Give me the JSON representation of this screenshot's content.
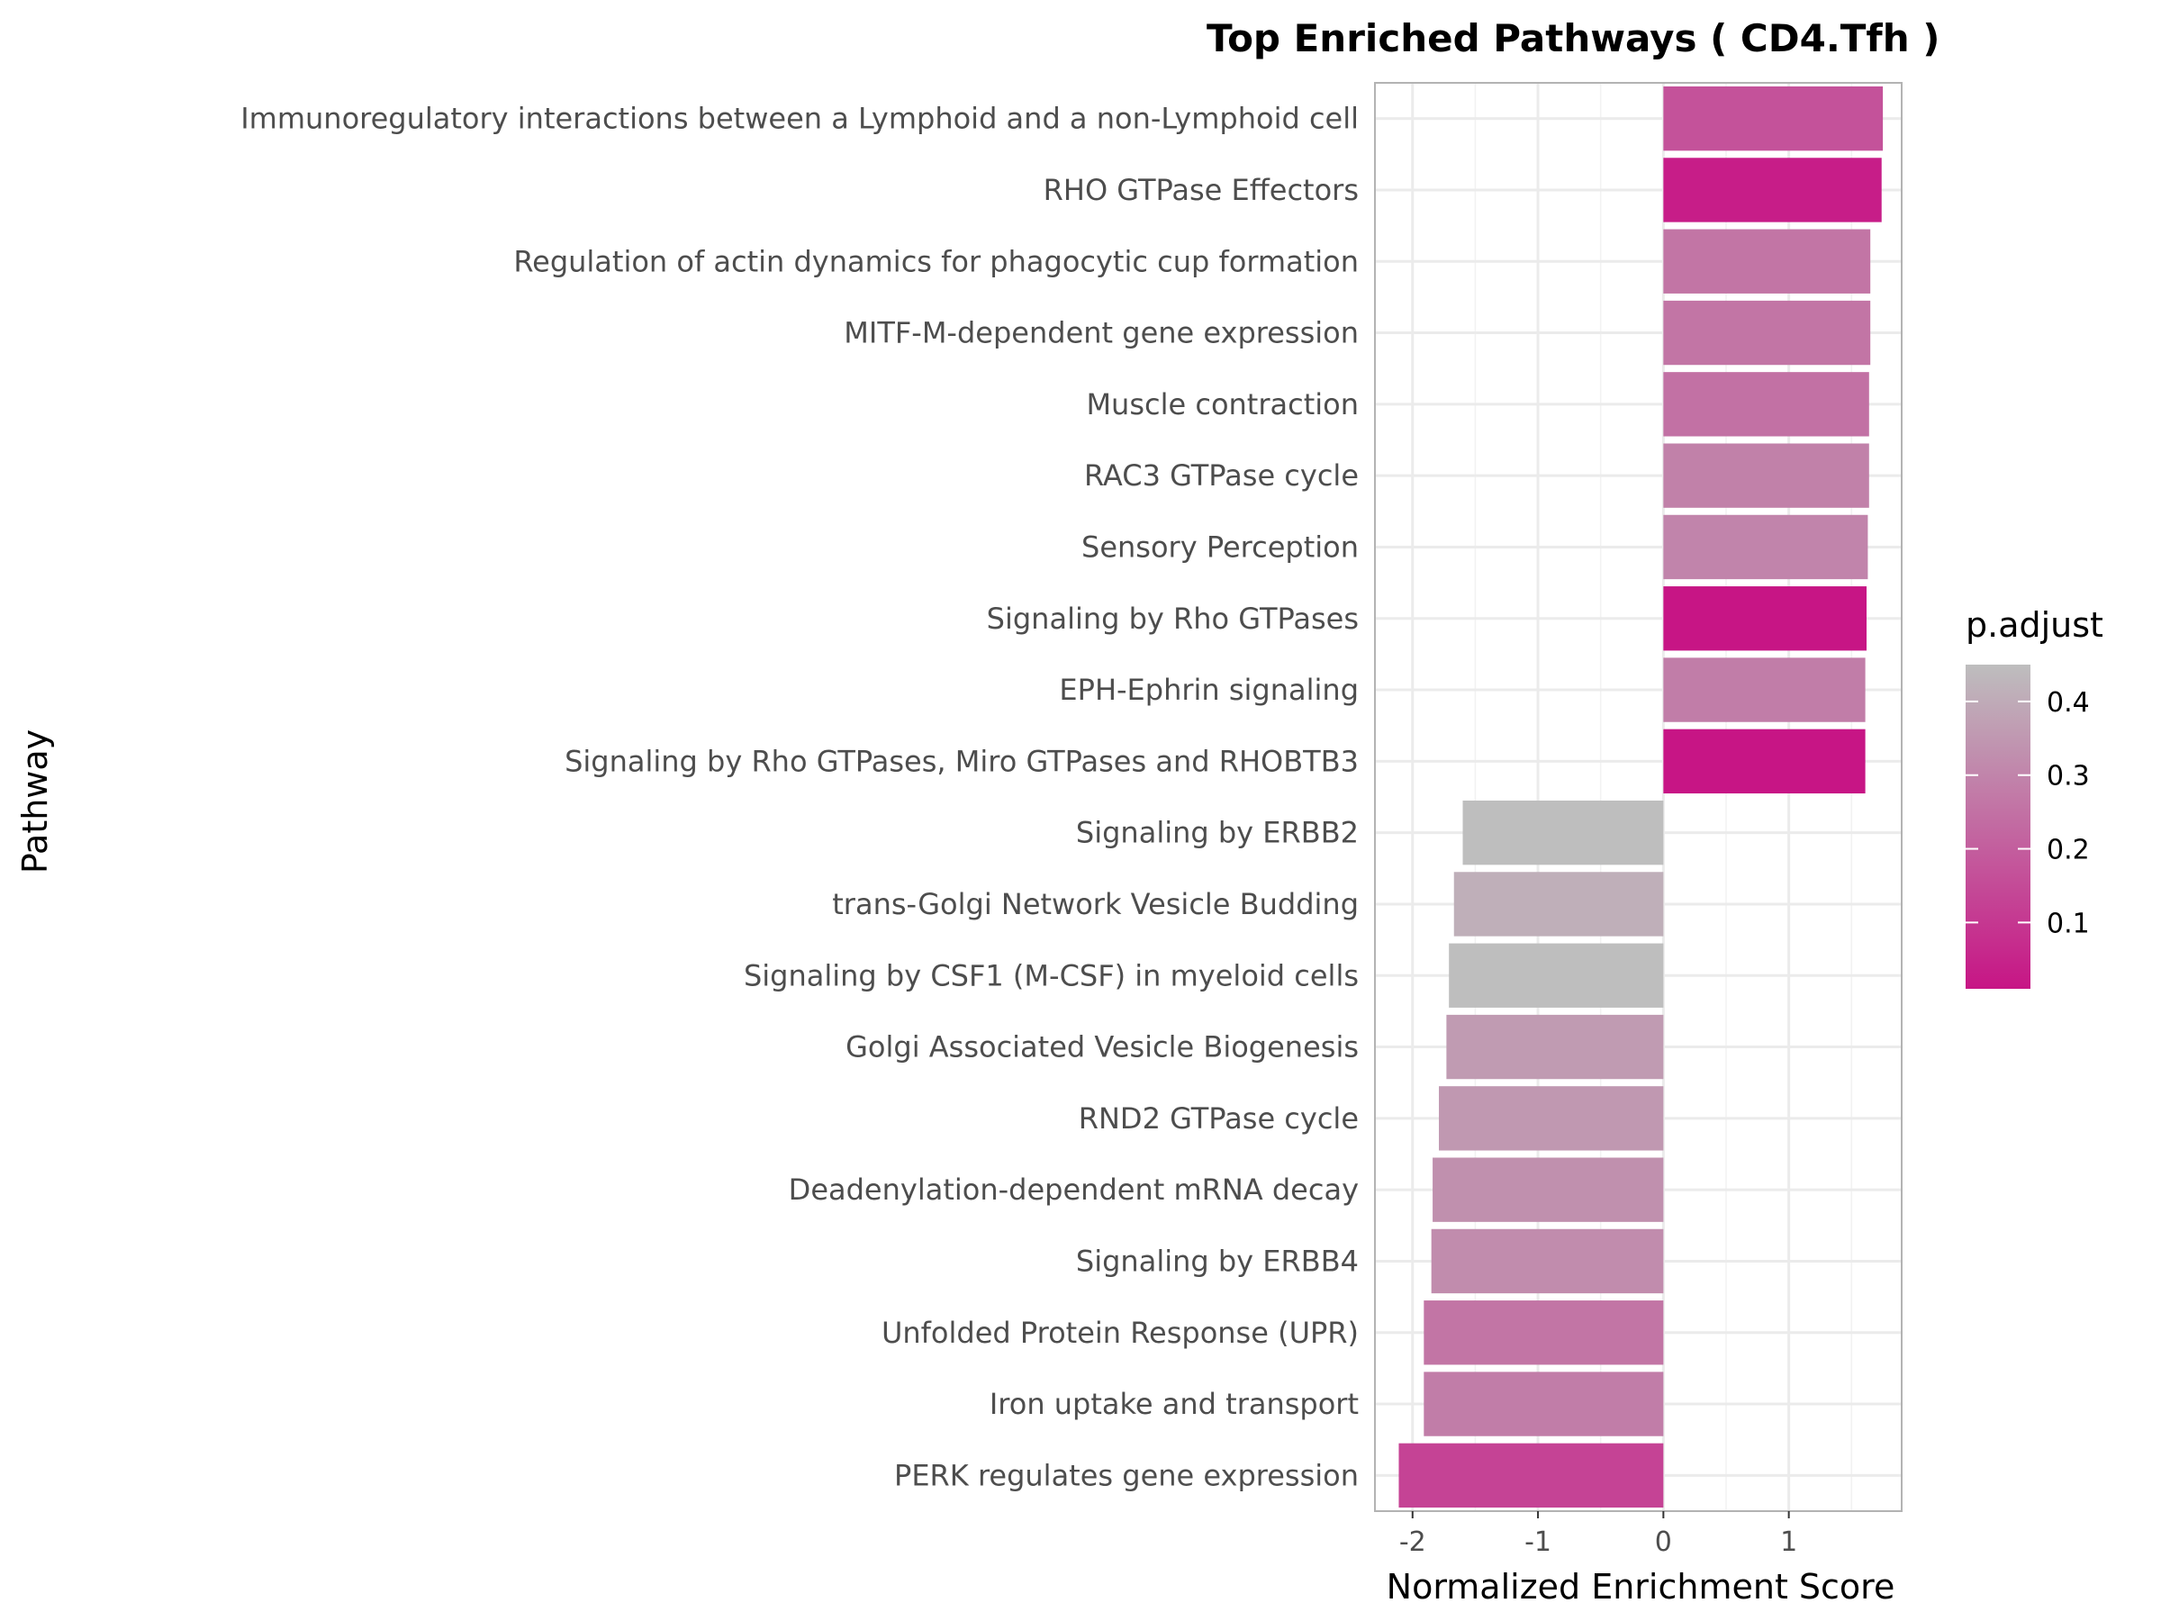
{
  "chart_data": {
    "type": "bar",
    "orientation": "horizontal",
    "title": "Top Enriched Pathways ( CD4.Tfh )",
    "xlabel": "Normalized Enrichment Score",
    "ylabel": "Pathway",
    "xlim": [
      -2.3,
      1.9
    ],
    "xticks": [
      -2,
      -1,
      0,
      1
    ],
    "xtick_labels": [
      "-2",
      "-1",
      "0",
      "1"
    ],
    "grid": true,
    "categories": [
      "Immunoregulatory interactions between a Lymphoid and a non-Lymphoid cell",
      "RHO GTPase Effectors",
      "Regulation of actin dynamics for phagocytic cup formation",
      "MITF-M-dependent gene expression",
      "Muscle contraction",
      "RAC3 GTPase cycle",
      "Sensory Perception",
      "Signaling by Rho GTPases",
      "EPH-Ephrin signaling",
      "Signaling by Rho GTPases, Miro GTPases and RHOBTB3",
      "Signaling by ERBB2",
      "trans-Golgi Network Vesicle Budding",
      "Signaling by CSF1 (M-CSF) in myeloid cells",
      "Golgi Associated Vesicle Biogenesis",
      "RND2 GTPase cycle",
      "Deadenylation-dependent mRNA decay",
      "Signaling by ERBB4",
      "Unfolded Protein Response (UPR)",
      "Iron uptake and transport",
      "PERK regulates gene expression"
    ],
    "values": [
      1.75,
      1.74,
      1.65,
      1.65,
      1.64,
      1.64,
      1.63,
      1.62,
      1.61,
      1.61,
      -1.6,
      -1.67,
      -1.71,
      -1.73,
      -1.79,
      -1.84,
      -1.85,
      -1.91,
      -1.91,
      -2.11
    ],
    "color_values": [
      0.17,
      0.03,
      0.26,
      0.26,
      0.25,
      0.29,
      0.3,
      0.01,
      0.28,
      0.01,
      0.45,
      0.41,
      0.45,
      0.36,
      0.35,
      0.33,
      0.32,
      0.26,
      0.28,
      0.13
    ],
    "colorbar": {
      "title": "p.adjust",
      "ticks": [
        0.1,
        0.2,
        0.3,
        0.4
      ],
      "tick_labels": [
        "0.1",
        "0.2",
        "0.3",
        "0.4"
      ],
      "range": [
        0.01,
        0.45
      ],
      "low_color": "#c71585",
      "high_color": "#bebebe",
      "placement": "right"
    }
  }
}
